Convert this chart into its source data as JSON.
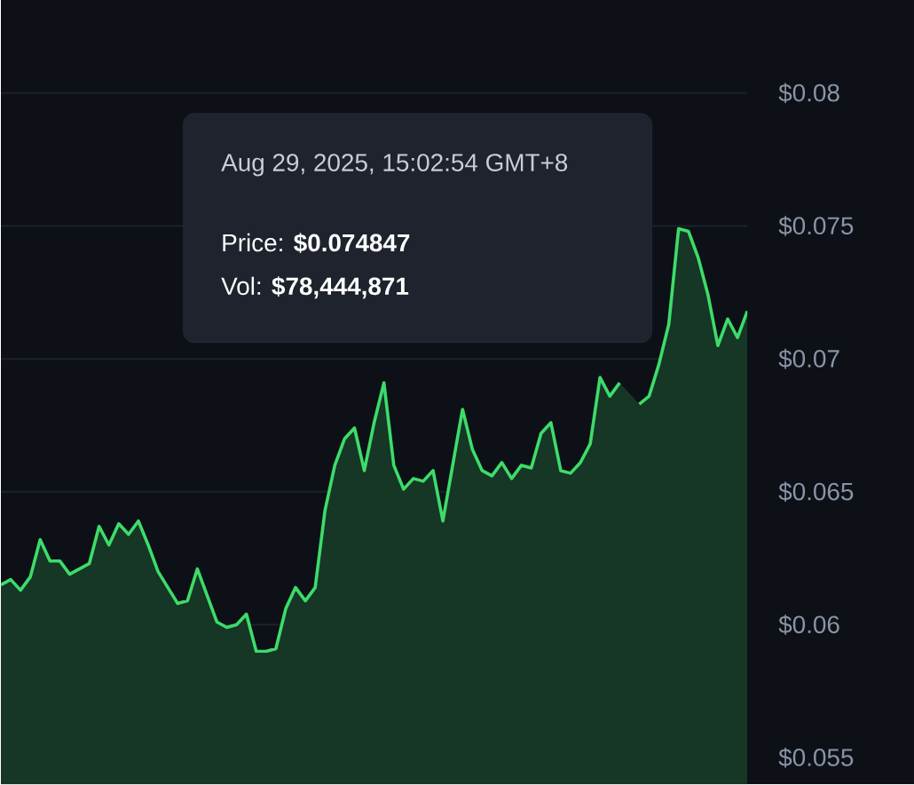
{
  "chart_data": {
    "type": "area",
    "color": "#3ddc6a",
    "categories": [
      null,
      null,
      null,
      null,
      null,
      null,
      null,
      null,
      null,
      null,
      null,
      null,
      null,
      null,
      null,
      null,
      null,
      null,
      null,
      null,
      null,
      null,
      null,
      null,
      null,
      null,
      null,
      null,
      null,
      null,
      null,
      null,
      null,
      null,
      null,
      null,
      null,
      null,
      null,
      null,
      null,
      null,
      null,
      null,
      null,
      null,
      null,
      null,
      null,
      null,
      null,
      null,
      null,
      null,
      null,
      null,
      null,
      null,
      null,
      null,
      null,
      null,
      null,
      null,
      null,
      null,
      null,
      null,
      null,
      null,
      null,
      null,
      null,
      null,
      null,
      null,
      null
    ],
    "values": [
      0.0615,
      0.0617,
      0.0613,
      0.0618,
      0.0632,
      0.0624,
      0.0624,
      0.0619,
      0.0621,
      0.0623,
      0.0637,
      0.063,
      0.0638,
      0.0634,
      0.0639,
      0.063,
      0.062,
      0.0614,
      0.0608,
      0.0609,
      0.0621,
      0.0611,
      0.0601,
      0.0599,
      0.06,
      0.0604,
      0.059,
      0.059,
      0.0591,
      0.0606,
      0.0614,
      0.0609,
      0.0614,
      0.0643,
      0.066,
      0.067,
      0.0674,
      0.0658,
      0.0676,
      0.0691,
      0.066,
      0.0651,
      0.0655,
      0.0654,
      0.0658,
      0.0639,
      0.066,
      0.0681,
      0.0666,
      0.0658,
      0.0656,
      0.0661,
      0.0655,
      0.066,
      0.0659,
      0.0672,
      0.0676,
      0.0658,
      0.0657,
      0.0661,
      0.0668,
      0.0693,
      0.0686,
      0.0691,
      null,
      0.0683,
      0.0686,
      0.0698,
      0.0713,
      0.0749,
      0.0748,
      0.0738,
      0.0724,
      0.0705,
      0.0715,
      0.0708,
      0.0718
    ],
    "ylim": [
      0.054,
      0.0835
    ],
    "yticks": [
      {
        "value": 0.055,
        "label": "$0.055"
      },
      {
        "value": 0.06,
        "label": "$0.06"
      },
      {
        "value": 0.065,
        "label": "$0.065"
      },
      {
        "value": 0.07,
        "label": "$0.07"
      },
      {
        "value": 0.075,
        "label": "$0.075"
      },
      {
        "value": 0.08,
        "label": "$0.08"
      }
    ],
    "grid": "y",
    "tick_labels": "y",
    "annotations": [
      "Aug 29, 2025, 15:02:54 GMT+8",
      "Price: **$0.074847**",
      "Vol: **$78,444,871**"
    ]
  }
}
